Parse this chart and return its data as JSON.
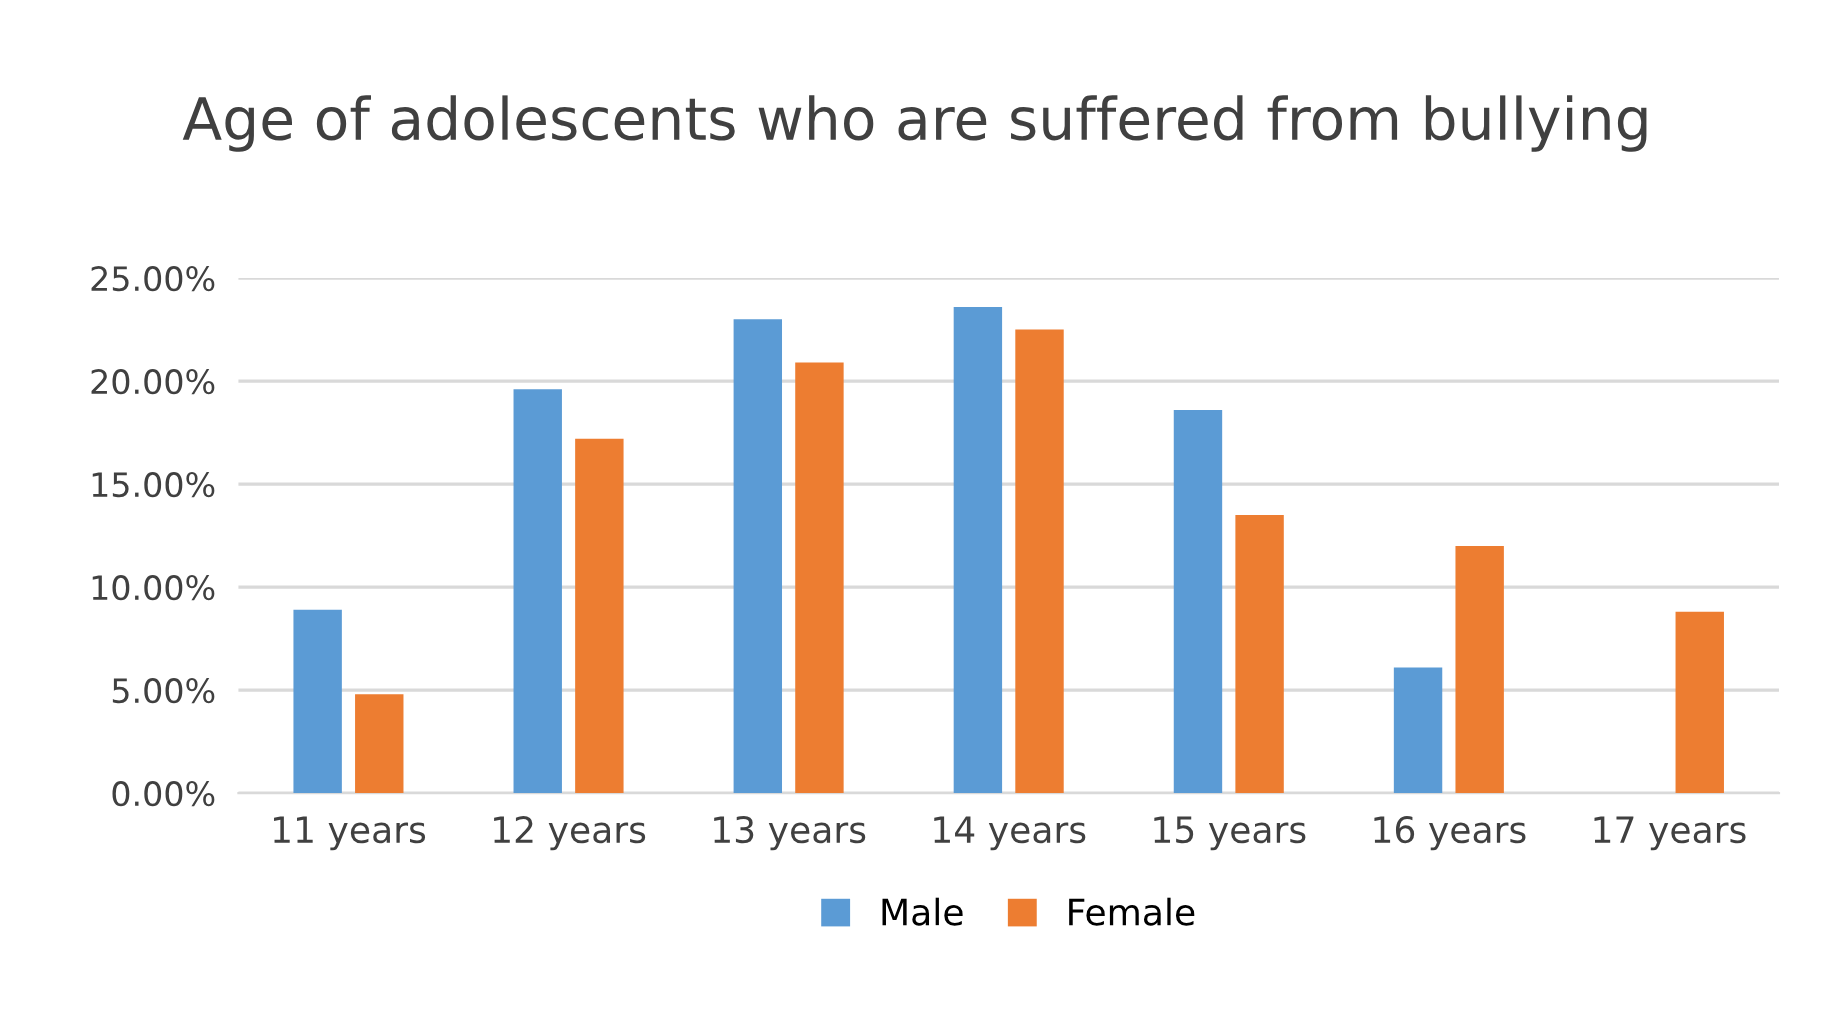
{
  "chart_data": {
    "type": "bar",
    "title": "Age of adolescents who are suffered from bullying",
    "categories": [
      "11 years",
      "12 years",
      "13 years",
      "14 years",
      "15 years",
      "16 years",
      "17 years"
    ],
    "series": [
      {
        "name": "Male",
        "color": "#5b9bd5",
        "values": [
          8.9,
          19.6,
          23.0,
          23.6,
          18.6,
          6.1,
          0
        ]
      },
      {
        "name": "Female",
        "color": "#ed7d31",
        "values": [
          4.8,
          17.2,
          20.9,
          22.5,
          13.5,
          12.0,
          8.8
        ]
      }
    ],
    "ylim": [
      0,
      25
    ],
    "yticks": [
      {
        "value": 0,
        "label": "0.00%"
      },
      {
        "value": 5,
        "label": "5.00%"
      },
      {
        "value": 10,
        "label": "10.00%"
      },
      {
        "value": 15,
        "label": "15.00%"
      },
      {
        "value": 20,
        "label": "20.00%"
      },
      {
        "value": 25,
        "label": "25.00%"
      }
    ],
    "grid": "y",
    "legend": "bottom"
  }
}
